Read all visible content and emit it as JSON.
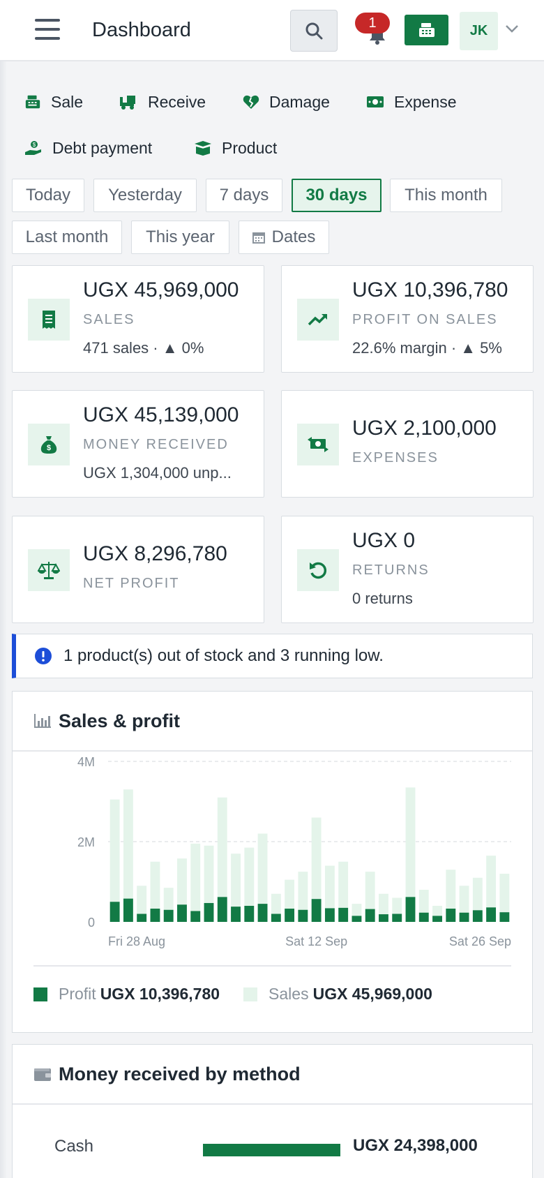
{
  "header": {
    "title": "Dashboard",
    "notification_count": "1",
    "avatar_initials": "JK"
  },
  "actions": [
    {
      "label": "Sale",
      "icon": "cash-register-icon"
    },
    {
      "label": "Receive",
      "icon": "truck-icon"
    },
    {
      "label": "Damage",
      "icon": "broken-heart-icon"
    },
    {
      "label": "Expense",
      "icon": "money-icon"
    },
    {
      "label": "Debt payment",
      "icon": "hand-coin-icon"
    },
    {
      "label": "Product",
      "icon": "box-icon"
    }
  ],
  "filters": {
    "today": "Today",
    "yesterday": "Yesterday",
    "days7": "7 days",
    "days30": "30 days",
    "this_month": "This month",
    "last_month": "Last month",
    "this_year": "This year",
    "dates": "Dates",
    "active": "30 days"
  },
  "cards": {
    "sales": {
      "value": "UGX 45,969,000",
      "label": "SALES",
      "sub": "471 sales · ▲ 0%"
    },
    "profit": {
      "value": "UGX 10,396,780",
      "label": "PROFIT ON SALES",
      "sub": "22.6% margin · ▲ 5%"
    },
    "received": {
      "value": "UGX 45,139,000",
      "label": "MONEY RECEIVED",
      "sub": "UGX 1,304,000 unp..."
    },
    "expenses": {
      "value": "UGX 2,100,000",
      "label": "EXPENSES"
    },
    "net_profit": {
      "value": "UGX 8,296,780",
      "label": "NET PROFIT"
    },
    "returns": {
      "value": "UGX 0",
      "label": "RETURNS",
      "sub": "0 returns"
    }
  },
  "alert": {
    "text": "1 product(s) out of stock and 3 running low."
  },
  "sales_panel": {
    "title": "Sales & profit",
    "legend_profit_label": "Profit",
    "legend_profit_value": "UGX 10,396,780",
    "legend_sales_label": "Sales",
    "legend_sales_value": "UGX 45,969,000"
  },
  "chart_data": {
    "type": "bar",
    "title": "Sales & profit",
    "ylim": [
      0,
      4000000
    ],
    "y_ticks": [
      {
        "value": 0,
        "label": "0"
      },
      {
        "value": 2000000,
        "label": "2M"
      },
      {
        "value": 4000000,
        "label": "4M"
      }
    ],
    "x_tick_labels": [
      {
        "index": 0,
        "label": "Fri 28 Aug"
      },
      {
        "index": 15,
        "label": "Sat 12 Sep"
      },
      {
        "index": 29,
        "label": "Sat 26 Sep"
      }
    ],
    "grid": true,
    "colors": {
      "profit": "#127a45",
      "sales": "#e4f4ea"
    },
    "series": [
      {
        "name": "Sales",
        "values": [
          3050000,
          3300000,
          900000,
          1500000,
          850000,
          1580000,
          1950000,
          1900000,
          3100000,
          1700000,
          1850000,
          2200000,
          700000,
          1050000,
          1250000,
          2600000,
          1400000,
          1500000,
          450000,
          1250000,
          700000,
          600000,
          3350000,
          800000,
          400000,
          1300000,
          900000,
          1100000,
          1650000,
          1200000
        ]
      },
      {
        "name": "Profit",
        "values": [
          500000,
          580000,
          200000,
          330000,
          300000,
          430000,
          270000,
          470000,
          620000,
          380000,
          400000,
          450000,
          200000,
          330000,
          300000,
          570000,
          340000,
          350000,
          150000,
          320000,
          190000,
          200000,
          620000,
          230000,
          150000,
          330000,
          230000,
          290000,
          360000,
          240000
        ]
      }
    ]
  },
  "methods_panel": {
    "title": "Money received by method",
    "rows": [
      {
        "name": "Cash",
        "amount": "UGX 24,398,000",
        "fraction": 0.54
      }
    ]
  }
}
